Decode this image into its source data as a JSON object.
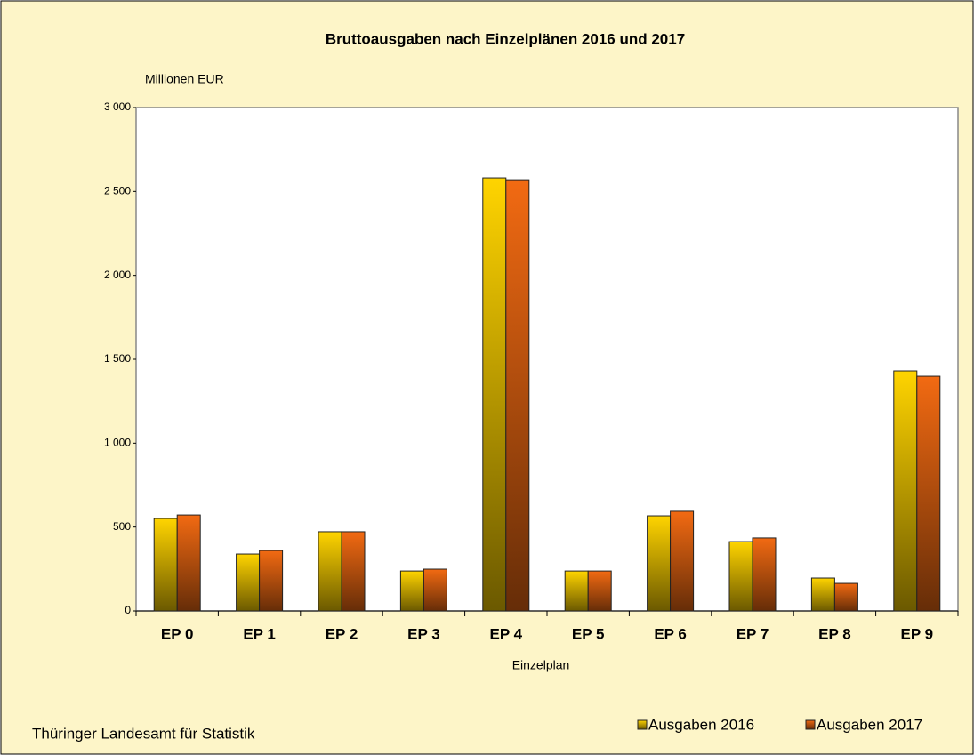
{
  "chart_data": {
    "type": "bar",
    "title": "Bruttoausgaben nach Einzelplänen 2016 und 2017",
    "y_label": "Millionen EUR",
    "x_label": "Einzelplan",
    "source": "Thüringer Landesamt für Statistik",
    "categories": [
      "EP 0",
      "EP 1",
      "EP 2",
      "EP 3",
      "EP 4",
      "EP 5",
      "EP 6",
      "EP 7",
      "EP 8",
      "EP 9"
    ],
    "series": [
      {
        "name": "Ausgaben 2016",
        "color": "#ffd400",
        "values": [
          551,
          339,
          472,
          238,
          2581,
          238,
          567,
          413,
          196,
          1431
        ]
      },
      {
        "name": "Ausgaben 2017",
        "color": "#f26a12",
        "values": [
          572,
          360,
          472,
          249,
          2570,
          238,
          594,
          435,
          164,
          1399
        ]
      }
    ],
    "ylim": [
      0,
      3000
    ],
    "yticks": [
      0,
      500,
      {
        "value": 1000,
        "label": "1 000"
      },
      {
        "value": 1500,
        "label": "1 500"
      },
      {
        "value": 2000,
        "label": "2 000"
      },
      {
        "value": 2500,
        "label": "2 500"
      },
      {
        "value": 3000,
        "label": "3 000"
      }
    ],
    "grid": false,
    "legend": "bottom-right"
  }
}
